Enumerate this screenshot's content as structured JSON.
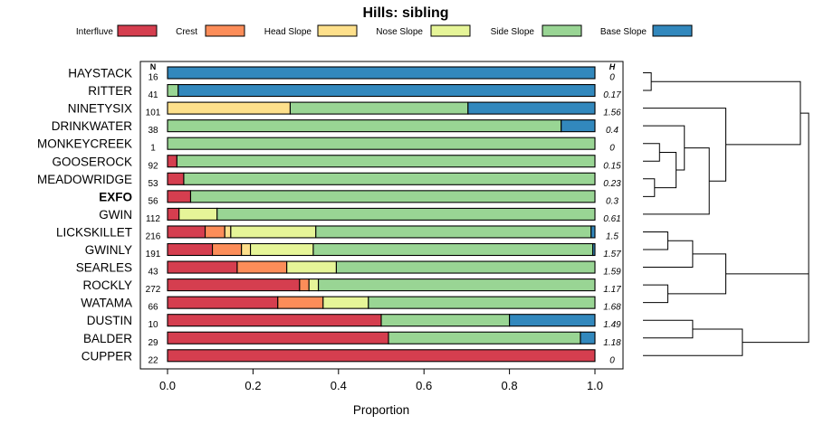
{
  "chart_data": {
    "type": "bar",
    "orientation": "horizontal-stacked",
    "title": "Hills: sibling",
    "xlabel": "Proportion",
    "ylabel": "",
    "xlim": [
      0,
      1
    ],
    "xticks": [
      "0.0",
      "0.2",
      "0.4",
      "0.6",
      "0.8",
      "1.0"
    ],
    "tick_values": [
      0,
      0.2,
      0.4,
      0.6,
      0.8,
      1.0
    ],
    "count_header": "N",
    "h_header": "H",
    "highlight": "EXFO",
    "legend_position": "top",
    "series": [
      {
        "name": "Interfluve",
        "color": "#d53e4f"
      },
      {
        "name": "Crest",
        "color": "#fc8d59"
      },
      {
        "name": "Head Slope",
        "color": "#fee08b"
      },
      {
        "name": "Nose Slope",
        "color": "#e6f598"
      },
      {
        "name": "Side Slope",
        "color": "#99d594"
      },
      {
        "name": "Base Slope",
        "color": "#3288bd"
      }
    ],
    "rows": [
      {
        "label": "HAYSTACK",
        "n": "16",
        "h": "0",
        "values": [
          0,
          0,
          0,
          0,
          0,
          1.0
        ]
      },
      {
        "label": "RITTER",
        "n": "41",
        "h": "0.17",
        "values": [
          0,
          0,
          0,
          0,
          0.025,
          0.975
        ]
      },
      {
        "label": "NINETYSIX",
        "n": "101",
        "h": "1.56",
        "values": [
          0,
          0,
          0.287,
          0,
          0.416,
          0.297
        ]
      },
      {
        "label": "DRINKWATER",
        "n": "38",
        "h": "0.4",
        "values": [
          0,
          0,
          0,
          0,
          0.921,
          0.079
        ]
      },
      {
        "label": "MONKEYCREEK",
        "n": "1",
        "h": "0",
        "values": [
          0,
          0,
          0,
          0,
          1.0,
          0
        ]
      },
      {
        "label": "GOOSEROCK",
        "n": "92",
        "h": "0.15",
        "values": [
          0.022,
          0,
          0,
          0,
          0.978,
          0
        ]
      },
      {
        "label": "MEADOWRIDGE",
        "n": "53",
        "h": "0.23",
        "values": [
          0.038,
          0,
          0,
          0,
          0.962,
          0
        ]
      },
      {
        "label": "EXFO",
        "n": "56",
        "h": "0.3",
        "values": [
          0.054,
          0,
          0,
          0,
          0.946,
          0
        ]
      },
      {
        "label": "GWIN",
        "n": "112",
        "h": "0.61",
        "values": [
          0.027,
          0,
          0,
          0.089,
          0.884,
          0
        ]
      },
      {
        "label": "LICKSKILLET",
        "n": "216",
        "h": "1.5",
        "values": [
          0.088,
          0.046,
          0.014,
          0.199,
          0.644,
          0.009
        ]
      },
      {
        "label": "GWINLY",
        "n": "191",
        "h": "1.57",
        "values": [
          0.105,
          0.068,
          0.021,
          0.147,
          0.654,
          0.005
        ]
      },
      {
        "label": "SEARLES",
        "n": "43",
        "h": "1.59",
        "values": [
          0.163,
          0.116,
          0,
          0.116,
          0.605,
          0
        ]
      },
      {
        "label": "ROCKLY",
        "n": "272",
        "h": "1.17",
        "values": [
          0.309,
          0.022,
          0,
          0.022,
          0.647,
          0
        ]
      },
      {
        "label": "WATAMA",
        "n": "66",
        "h": "1.68",
        "values": [
          0.258,
          0.106,
          0,
          0.106,
          0.53,
          0
        ]
      },
      {
        "label": "DUSTIN",
        "n": "10",
        "h": "1.49",
        "values": [
          0.5,
          0,
          0,
          0,
          0.3,
          0.2
        ]
      },
      {
        "label": "BALDER",
        "n": "29",
        "h": "1.18",
        "values": [
          0.517,
          0,
          0,
          0,
          0.449,
          0.034
        ]
      },
      {
        "label": "CUPPER",
        "n": "22",
        "h": "0",
        "values": [
          1.0,
          0,
          0,
          0,
          0,
          0
        ]
      }
    ],
    "dendrogram": {
      "description": "hierarchical clustering of rows (leaves indexed top to bottom)",
      "merges": [
        [
          0,
          1,
          0.05
        ],
        [
          4,
          5,
          0.1
        ],
        [
          6,
          7,
          0.07
        ],
        [
          "m1",
          "m2",
          0.2
        ],
        [
          3,
          "m3",
          0.25
        ],
        [
          8,
          "m4",
          0.4
        ],
        [
          2,
          "m5",
          0.5
        ],
        [
          9,
          10,
          0.15
        ],
        [
          11,
          "m7",
          0.3
        ],
        [
          12,
          13,
          0.15
        ],
        [
          "m8",
          "m9",
          0.5
        ],
        [
          14,
          15,
          0.3
        ],
        [
          16,
          "m11",
          0.6
        ],
        [
          "m10",
          "m12",
          1.0
        ],
        [
          "m0",
          "m6",
          0.95
        ],
        [
          "m14",
          "m13",
          1.0
        ]
      ]
    }
  }
}
